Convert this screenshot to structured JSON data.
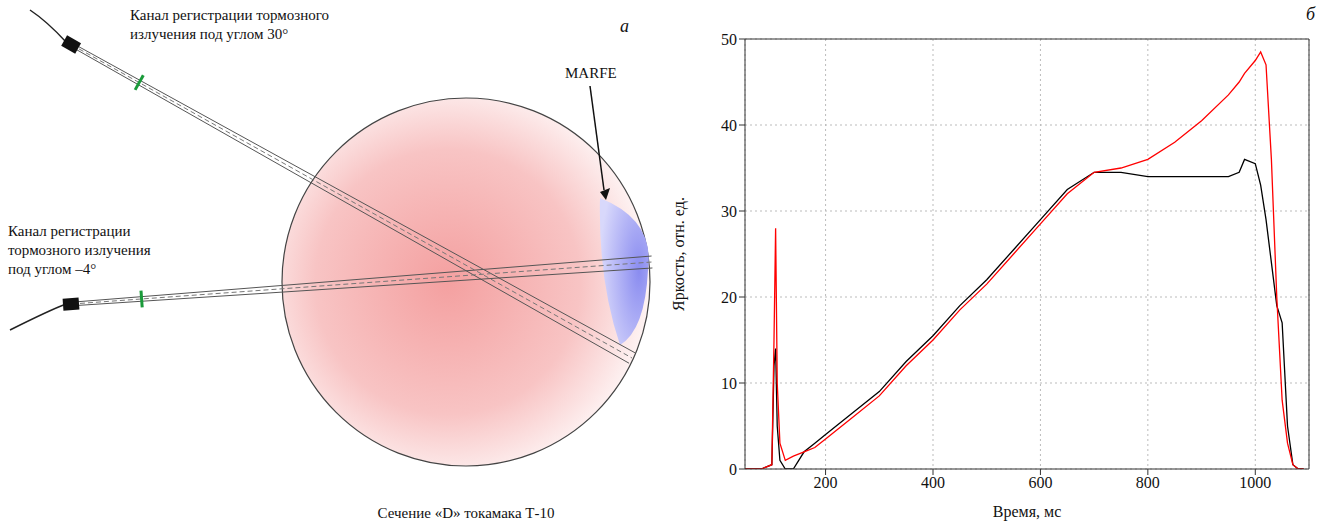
{
  "diagram": {
    "panel_label": "а",
    "channel_top": "Канал регистрации тормозного излучения под углом 30°",
    "channel_bottom": "Канал регистрации тормозного излучения под углом –4°",
    "marfe": "MARFE",
    "caption": "Сечение «D» токамака Т-10"
  },
  "chart_data": {
    "type": "line",
    "panel_label": "б",
    "x_label": "Время, мс",
    "y_label": "Яркость, отн. ед.",
    "x": [
      50,
      80,
      100,
      104,
      107,
      110,
      115,
      125,
      140,
      160,
      180,
      200,
      250,
      300,
      350,
      400,
      450,
      500,
      550,
      600,
      650,
      700,
      750,
      800,
      850,
      900,
      950,
      970,
      980,
      1000,
      1010,
      1020,
      1030,
      1040,
      1050,
      1060,
      1070,
      1080,
      1090
    ],
    "series": [
      {
        "color": "#000000",
        "values": [
          0,
          0,
          0.5,
          12,
          14,
          5,
          1,
          0,
          0,
          2,
          3,
          4,
          6.5,
          9,
          12.5,
          15.5,
          19,
          22,
          25.5,
          29,
          32.5,
          34.5,
          34.5,
          34,
          34,
          34,
          34,
          34.5,
          36,
          35.5,
          33,
          29,
          24,
          19,
          17,
          5,
          0.5,
          0,
          0
        ]
      },
      {
        "color": "#ff0000",
        "values": [
          0,
          0,
          0.5,
          15,
          28,
          10,
          3,
          1,
          1.5,
          2,
          2.5,
          3.5,
          6,
          8.5,
          12,
          15,
          18.5,
          21.5,
          25,
          28.5,
          32,
          34.5,
          35,
          36,
          38,
          40.5,
          43.5,
          45,
          46,
          47.5,
          48.5,
          47,
          36,
          20,
          8,
          3,
          0.5,
          0,
          0
        ]
      }
    ],
    "xlim": [
      50,
      1100
    ],
    "ylim": [
      0,
      50
    ],
    "xticks": [
      200,
      400,
      600,
      800,
      1000
    ],
    "yticks": [
      0,
      10,
      20,
      30,
      40,
      50
    ],
    "grid": true
  }
}
